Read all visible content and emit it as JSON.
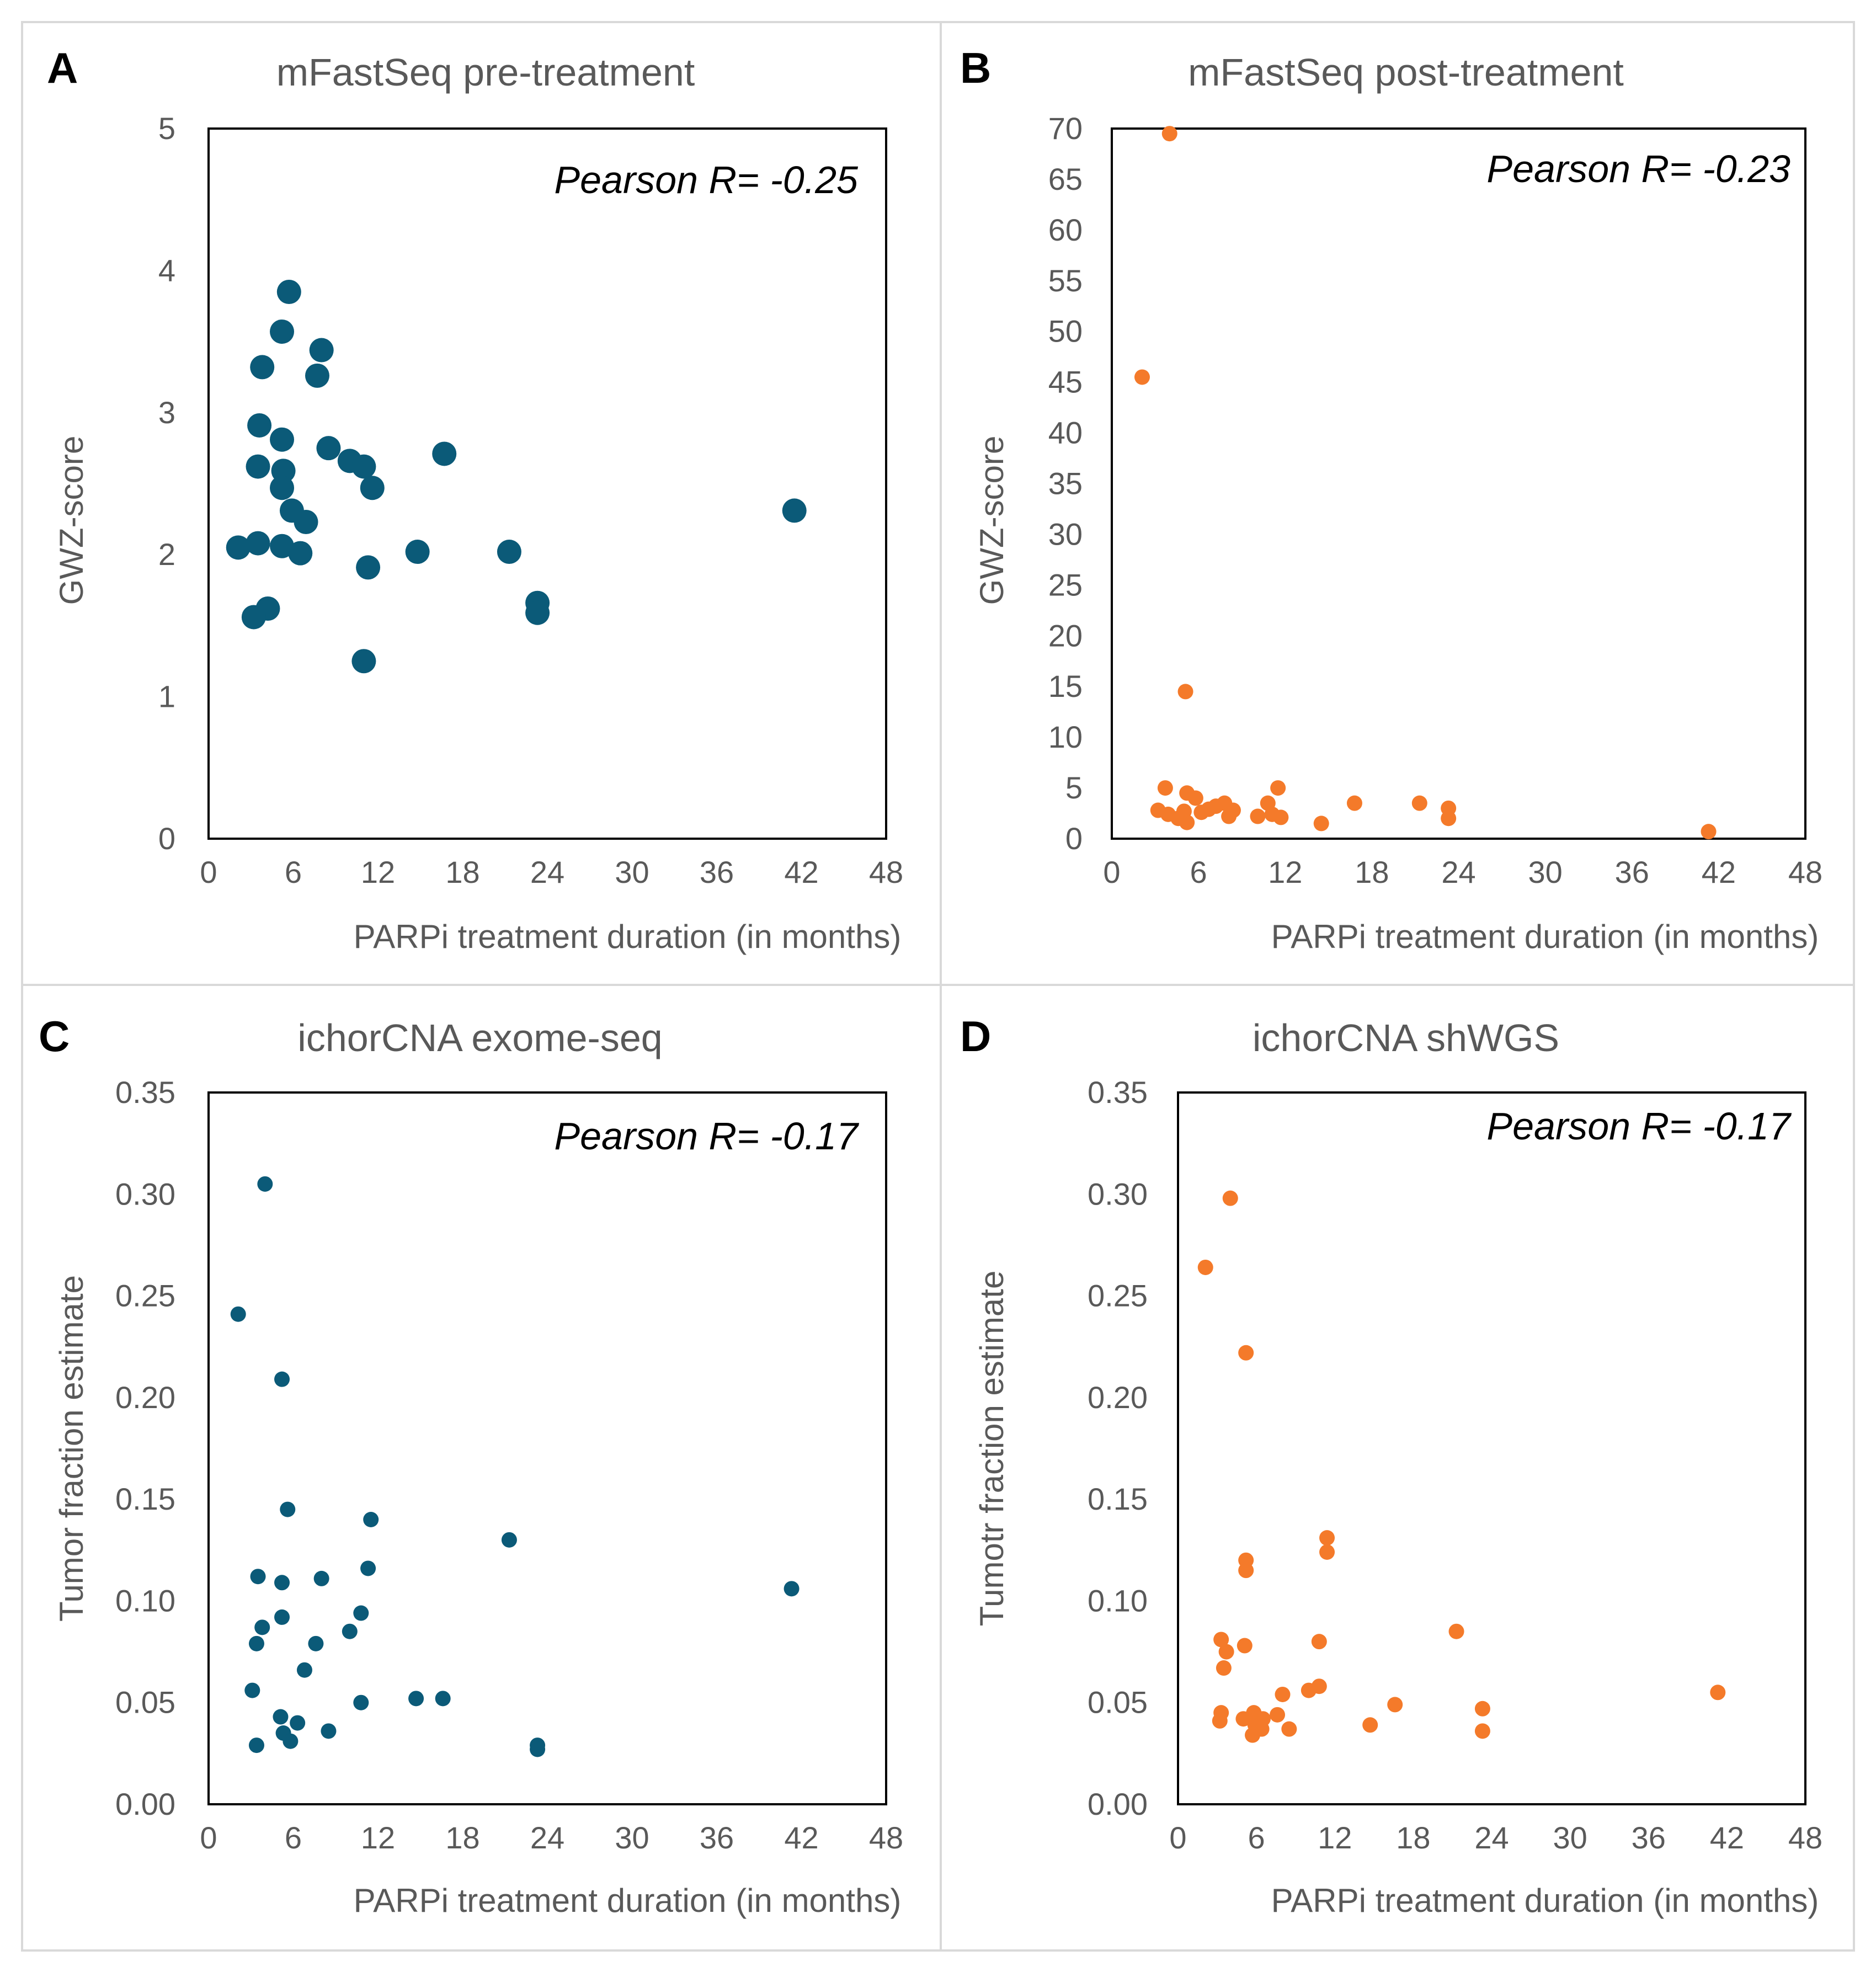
{
  "colors": {
    "blue": "#0b5a78",
    "orange": "#f47a2a",
    "text": "#595959"
  },
  "chart_data": [
    {
      "panel": "A",
      "type": "scatter",
      "title": "mFastSeq pre-treatment",
      "xlabel": "PARPi treatment duration  (in months)",
      "ylabel": "GWZ-score",
      "annotation": "Pearson R= -0.25",
      "color": "blue",
      "marker": "large",
      "xlim": [
        0,
        48
      ],
      "ylim": [
        0,
        5
      ],
      "xticks": [
        "0",
        "6",
        "12",
        "18",
        "24",
        "30",
        "36",
        "42",
        "48"
      ],
      "yticks": [
        "0",
        "1",
        "2",
        "3",
        "4",
        "5"
      ],
      "points": [
        {
          "x": 5.7,
          "y": 3.85
        },
        {
          "x": 5.2,
          "y": 3.57
        },
        {
          "x": 8.0,
          "y": 3.44
        },
        {
          "x": 3.8,
          "y": 3.32
        },
        {
          "x": 7.7,
          "y": 3.26
        },
        {
          "x": 3.6,
          "y": 2.91
        },
        {
          "x": 5.2,
          "y": 2.81
        },
        {
          "x": 8.5,
          "y": 2.75
        },
        {
          "x": 16.7,
          "y": 2.71
        },
        {
          "x": 10.0,
          "y": 2.66
        },
        {
          "x": 11.0,
          "y": 2.62
        },
        {
          "x": 3.5,
          "y": 2.62
        },
        {
          "x": 5.3,
          "y": 2.59
        },
        {
          "x": 11.6,
          "y": 2.47
        },
        {
          "x": 5.2,
          "y": 2.47
        },
        {
          "x": 5.9,
          "y": 2.31
        },
        {
          "x": 6.9,
          "y": 2.23
        },
        {
          "x": 41.5,
          "y": 2.31
        },
        {
          "x": 2.1,
          "y": 2.05
        },
        {
          "x": 3.5,
          "y": 2.08
        },
        {
          "x": 5.2,
          "y": 2.06
        },
        {
          "x": 6.5,
          "y": 2.01
        },
        {
          "x": 14.8,
          "y": 2.02
        },
        {
          "x": 21.3,
          "y": 2.02
        },
        {
          "x": 11.3,
          "y": 1.91
        },
        {
          "x": 23.3,
          "y": 1.66
        },
        {
          "x": 23.3,
          "y": 1.59
        },
        {
          "x": 4.2,
          "y": 1.62
        },
        {
          "x": 3.2,
          "y": 1.56
        },
        {
          "x": 11.0,
          "y": 1.25
        }
      ]
    },
    {
      "panel": "B",
      "type": "scatter",
      "title": "mFastSeq post-treatment",
      "xlabel": "PARPi treatment duration  (in months)",
      "ylabel": "GWZ-score",
      "annotation": "Pearson R= -0.23",
      "color": "orange",
      "marker": "small",
      "xlim": [
        0,
        48
      ],
      "ylim": [
        0,
        70
      ],
      "xticks": [
        "0",
        "6",
        "12",
        "18",
        "24",
        "30",
        "36",
        "42",
        "48"
      ],
      "yticks": [
        "0",
        "5",
        "10",
        "15",
        "20",
        "25",
        "30",
        "35",
        "40",
        "45",
        "50",
        "55",
        "60",
        "65",
        "70"
      ],
      "points": [
        {
          "x": 4.0,
          "y": 69.5
        },
        {
          "x": 2.1,
          "y": 45.5
        },
        {
          "x": 5.1,
          "y": 14.5
        },
        {
          "x": 3.7,
          "y": 5.0
        },
        {
          "x": 11.5,
          "y": 5.0
        },
        {
          "x": 5.2,
          "y": 4.5
        },
        {
          "x": 5.8,
          "y": 4.0
        },
        {
          "x": 16.8,
          "y": 3.5
        },
        {
          "x": 21.3,
          "y": 3.5
        },
        {
          "x": 23.3,
          "y": 3.0
        },
        {
          "x": 23.3,
          "y": 2.0
        },
        {
          "x": 7.2,
          "y": 3.2
        },
        {
          "x": 7.8,
          "y": 3.5
        },
        {
          "x": 8.4,
          "y": 2.8
        },
        {
          "x": 10.8,
          "y": 3.5
        },
        {
          "x": 3.2,
          "y": 2.8
        },
        {
          "x": 3.9,
          "y": 2.4
        },
        {
          "x": 5.0,
          "y": 2.7
        },
        {
          "x": 6.2,
          "y": 2.6
        },
        {
          "x": 6.7,
          "y": 2.9
        },
        {
          "x": 8.1,
          "y": 2.2
        },
        {
          "x": 10.1,
          "y": 2.2
        },
        {
          "x": 11.1,
          "y": 2.4
        },
        {
          "x": 11.7,
          "y": 2.1
        },
        {
          "x": 5.2,
          "y": 1.6
        },
        {
          "x": 4.6,
          "y": 2.0
        },
        {
          "x": 14.5,
          "y": 1.5
        },
        {
          "x": 41.3,
          "y": 0.7
        }
      ]
    },
    {
      "panel": "C",
      "type": "scatter",
      "title": "ichorCNA exome-seq",
      "xlabel": "PARPi treatment duration  (in months)",
      "ylabel": "Tumor  fraction estimate",
      "annotation": "Pearson R= -0.17",
      "color": "blue",
      "marker": "small",
      "xlim": [
        0,
        48
      ],
      "ylim": [
        0,
        0.35
      ],
      "xticks": [
        "0",
        "6",
        "12",
        "18",
        "24",
        "30",
        "36",
        "42",
        "48"
      ],
      "yticks": [
        "0.00",
        "0.05",
        "0.10",
        "0.15",
        "0.20",
        "0.25",
        "0.30",
        "0.35"
      ],
      "points": [
        {
          "x": 4.0,
          "y": 0.305
        },
        {
          "x": 2.1,
          "y": 0.241
        },
        {
          "x": 5.2,
          "y": 0.209
        },
        {
          "x": 5.6,
          "y": 0.145
        },
        {
          "x": 11.5,
          "y": 0.14
        },
        {
          "x": 21.3,
          "y": 0.13
        },
        {
          "x": 3.5,
          "y": 0.112
        },
        {
          "x": 5.2,
          "y": 0.109
        },
        {
          "x": 8.0,
          "y": 0.111
        },
        {
          "x": 11.3,
          "y": 0.116
        },
        {
          "x": 41.3,
          "y": 0.106
        },
        {
          "x": 5.2,
          "y": 0.092
        },
        {
          "x": 10.8,
          "y": 0.094
        },
        {
          "x": 3.8,
          "y": 0.087
        },
        {
          "x": 10.0,
          "y": 0.085
        },
        {
          "x": 3.4,
          "y": 0.079
        },
        {
          "x": 7.6,
          "y": 0.079
        },
        {
          "x": 6.8,
          "y": 0.066
        },
        {
          "x": 3.1,
          "y": 0.056
        },
        {
          "x": 10.8,
          "y": 0.05
        },
        {
          "x": 14.7,
          "y": 0.052
        },
        {
          "x": 16.6,
          "y": 0.052
        },
        {
          "x": 5.1,
          "y": 0.043
        },
        {
          "x": 6.3,
          "y": 0.04
        },
        {
          "x": 5.3,
          "y": 0.035
        },
        {
          "x": 8.5,
          "y": 0.036
        },
        {
          "x": 5.8,
          "y": 0.031
        },
        {
          "x": 3.4,
          "y": 0.029
        },
        {
          "x": 23.3,
          "y": 0.029
        },
        {
          "x": 23.3,
          "y": 0.027
        }
      ]
    },
    {
      "panel": "D",
      "type": "scatter",
      "title": "ichorCNA shWGS",
      "xlabel": "PARPi treatment duration  (in months)",
      "ylabel": "Tumotr fraction estimate",
      "annotation": "Pearson R= -0.17",
      "color": "orange",
      "marker": "small",
      "xlim": [
        0,
        48
      ],
      "ylim": [
        0,
        0.35
      ],
      "xticks": [
        "0",
        "6",
        "12",
        "18",
        "24",
        "30",
        "36",
        "42",
        "48"
      ],
      "yticks": [
        "0.00",
        "0.05",
        "0.10",
        "0.15",
        "0.20",
        "0.25",
        "0.30",
        "0.35"
      ],
      "points": [
        {
          "x": 4.0,
          "y": 0.298
        },
        {
          "x": 2.1,
          "y": 0.264
        },
        {
          "x": 5.2,
          "y": 0.222
        },
        {
          "x": 11.4,
          "y": 0.131
        },
        {
          "x": 11.4,
          "y": 0.124
        },
        {
          "x": 5.2,
          "y": 0.12
        },
        {
          "x": 5.2,
          "y": 0.115
        },
        {
          "x": 21.3,
          "y": 0.085
        },
        {
          "x": 3.3,
          "y": 0.081
        },
        {
          "x": 10.8,
          "y": 0.08
        },
        {
          "x": 5.1,
          "y": 0.078
        },
        {
          "x": 3.7,
          "y": 0.075
        },
        {
          "x": 3.5,
          "y": 0.067
        },
        {
          "x": 10.8,
          "y": 0.058
        },
        {
          "x": 10.0,
          "y": 0.056
        },
        {
          "x": 41.3,
          "y": 0.055
        },
        {
          "x": 8.0,
          "y": 0.054
        },
        {
          "x": 16.6,
          "y": 0.049
        },
        {
          "x": 23.3,
          "y": 0.047
        },
        {
          "x": 3.3,
          "y": 0.045
        },
        {
          "x": 5.8,
          "y": 0.045
        },
        {
          "x": 7.6,
          "y": 0.044
        },
        {
          "x": 5.0,
          "y": 0.042
        },
        {
          "x": 6.5,
          "y": 0.042
        },
        {
          "x": 3.2,
          "y": 0.041
        },
        {
          "x": 5.9,
          "y": 0.039
        },
        {
          "x": 14.7,
          "y": 0.039
        },
        {
          "x": 8.5,
          "y": 0.037
        },
        {
          "x": 6.4,
          "y": 0.037
        },
        {
          "x": 23.3,
          "y": 0.036
        },
        {
          "x": 5.7,
          "y": 0.034
        }
      ]
    }
  ]
}
